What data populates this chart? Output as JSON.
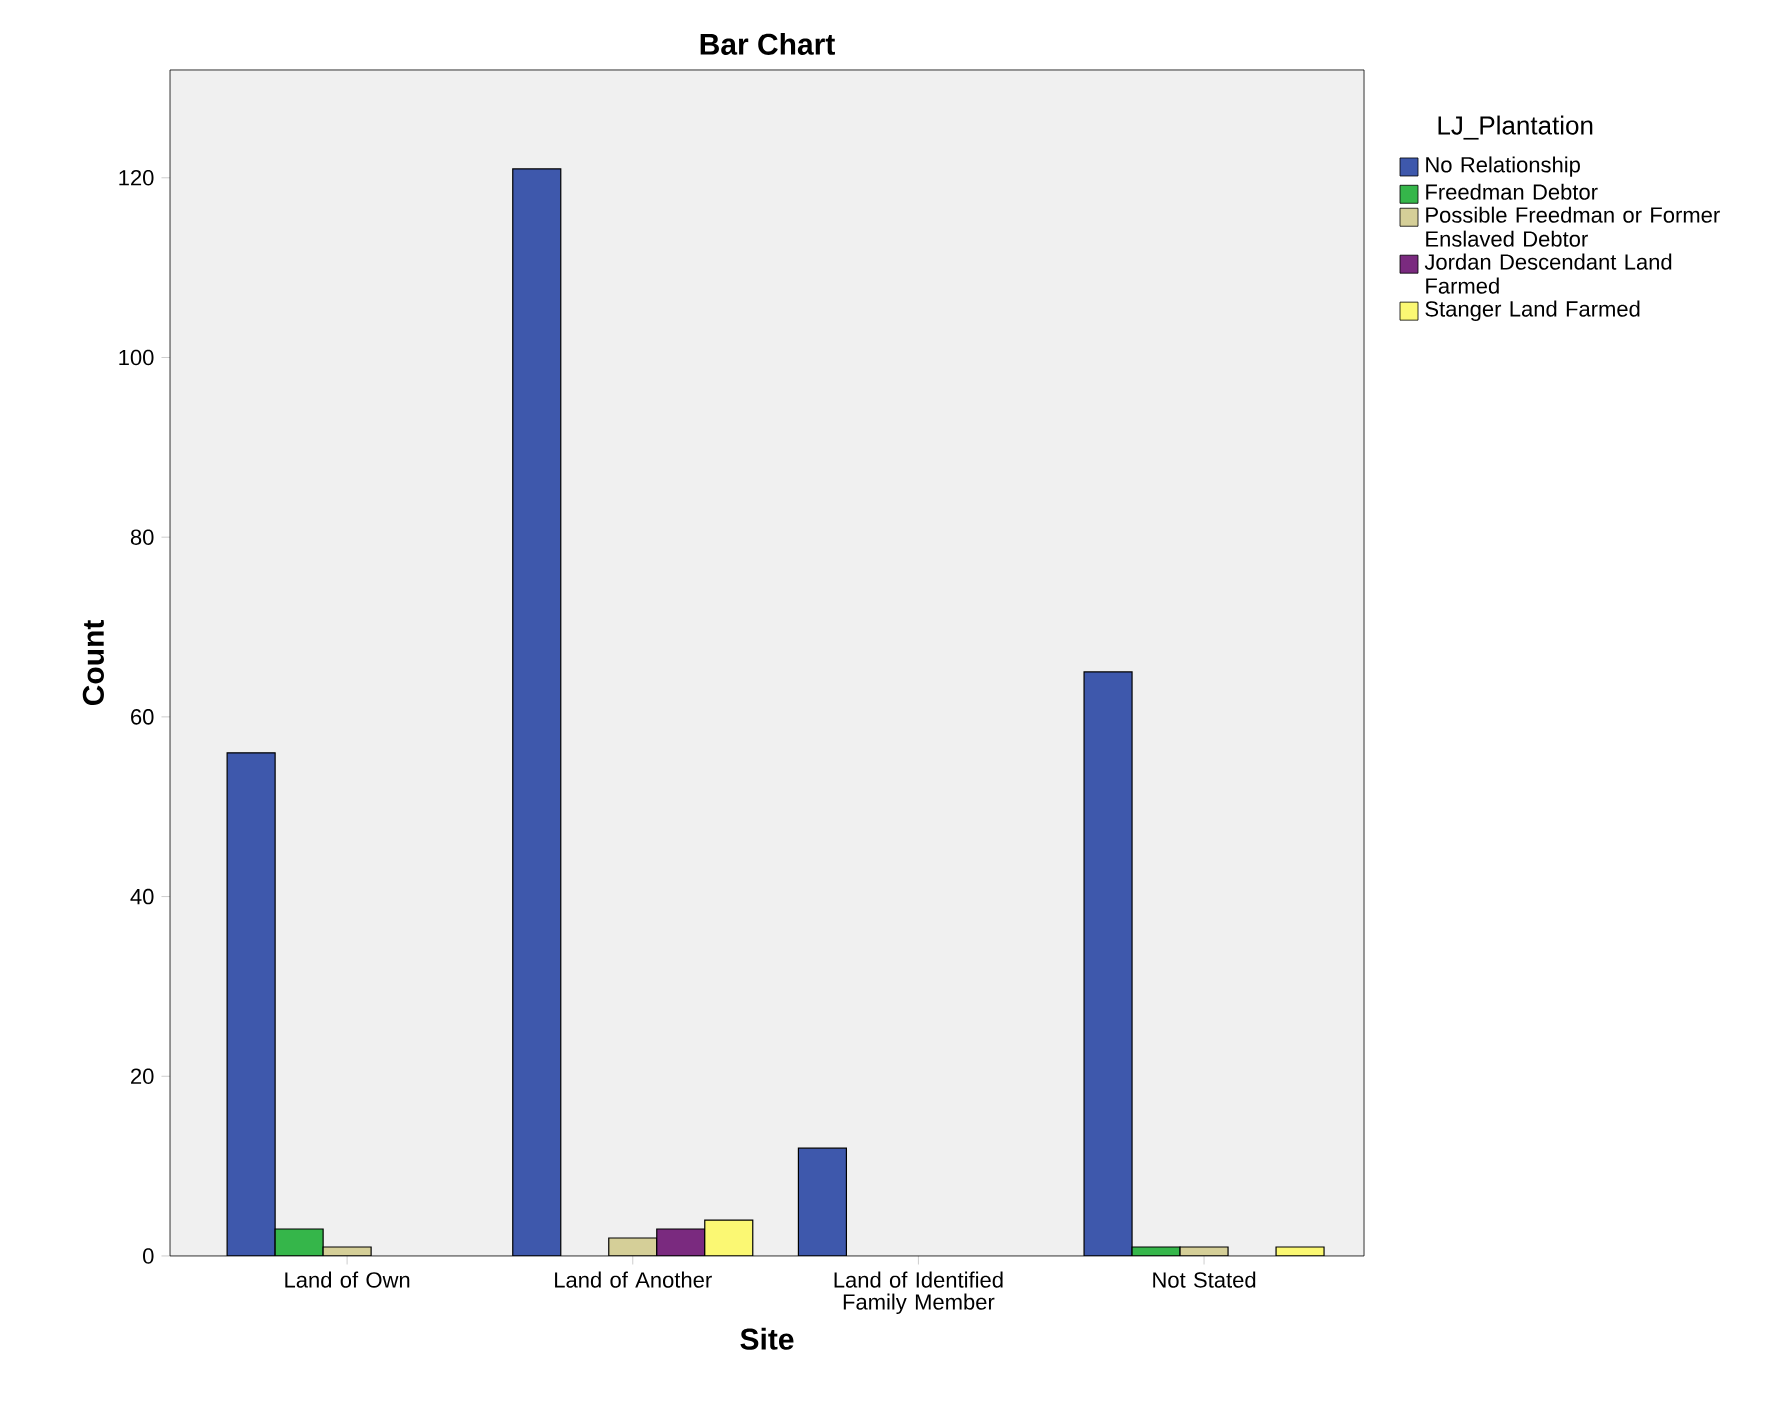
{
  "chart_data": {
    "type": "bar",
    "title": "Bar Chart",
    "xlabel": "Site",
    "ylabel": "Count",
    "legend_title": "LJ_Plantation",
    "categories": [
      "Land of Own",
      "Land of Another",
      "Land of Identified Family Member",
      "Not Stated"
    ],
    "series": [
      {
        "name": "No Relationship",
        "color": "#3e58ac",
        "values": [
          56,
          121,
          12,
          65
        ]
      },
      {
        "name": "Freedman Debtor",
        "color": "#35b64a",
        "values": [
          3,
          0,
          0,
          1
        ]
      },
      {
        "name": "Possible Freedman or Former Enslaved Debtor",
        "color": "#d5cf98",
        "values": [
          1,
          2,
          0,
          1
        ]
      },
      {
        "name": "Jordan Descendant Land Farmed",
        "color": "#7a2a7f",
        "values": [
          0,
          3,
          0,
          0
        ]
      },
      {
        "name": "Stanger Land Farmed",
        "color": "#fbf873",
        "values": [
          0,
          4,
          0,
          1
        ]
      }
    ],
    "ylim": [
      0,
      132
    ],
    "yticks": [
      0,
      20,
      40,
      60,
      80,
      100,
      120
    ],
    "grid": false,
    "legend": "right"
  }
}
